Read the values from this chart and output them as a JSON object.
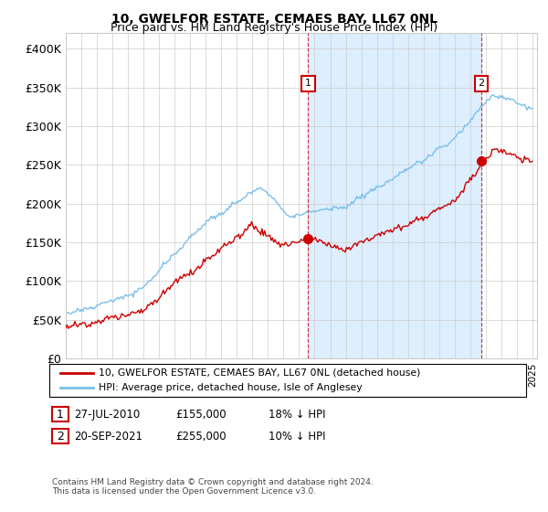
{
  "title": "10, GWELFOR ESTATE, CEMAES BAY, LL67 0NL",
  "subtitle": "Price paid vs. HM Land Registry's House Price Index (HPI)",
  "legend_line1": "10, GWELFOR ESTATE, CEMAES BAY, LL67 0NL (detached house)",
  "legend_line2": "HPI: Average price, detached house, Isle of Anglesey",
  "annotation1_date": "27-JUL-2010",
  "annotation1_price": "£155,000",
  "annotation1_hpi": "18% ↓ HPI",
  "annotation1_year": 2010.57,
  "annotation1_value": 155000,
  "annotation2_date": "20-SEP-2021",
  "annotation2_price": "£255,000",
  "annotation2_hpi": "10% ↓ HPI",
  "annotation2_year": 2021.72,
  "annotation2_value": 255000,
  "footer_line1": "Contains HM Land Registry data © Crown copyright and database right 2024.",
  "footer_line2": "This data is licensed under the Open Government Licence v3.0.",
  "hpi_color": "#7abfea",
  "price_color": "#cc0000",
  "shade_color": "#ddeeff",
  "ylim_min": 0,
  "ylim_max": 420000,
  "yticks": [
    0,
    50000,
    100000,
    150000,
    200000,
    250000,
    300000,
    350000,
    400000
  ],
  "ytick_labels": [
    "£0",
    "£50K",
    "£100K",
    "£150K",
    "£200K",
    "£250K",
    "£300K",
    "£350K",
    "£400K"
  ],
  "xlim_min": 1995,
  "xlim_max": 2025.3
}
